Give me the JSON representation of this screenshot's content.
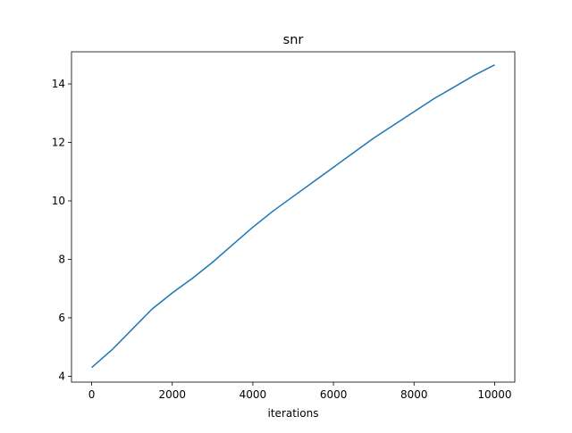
{
  "chart_data": {
    "type": "line",
    "title": "snr",
    "xlabel": "iterations",
    "ylabel": "",
    "xlim": [
      -500,
      10500
    ],
    "ylim": [
      3.8,
      15.1
    ],
    "xticks": [
      0,
      2000,
      4000,
      6000,
      8000,
      10000
    ],
    "xtick_labels": [
      "0",
      "2000",
      "4000",
      "6000",
      "8000",
      "10000"
    ],
    "yticks": [
      4,
      6,
      8,
      10,
      12,
      14
    ],
    "ytick_labels": [
      "4",
      "6",
      "8",
      "10",
      "12",
      "14"
    ],
    "grid": false,
    "legend": "none",
    "series": [
      {
        "color": "#1f77b4",
        "x": [
          0,
          500,
          1000,
          1500,
          2000,
          2500,
          3000,
          3500,
          4000,
          4500,
          5000,
          5500,
          6000,
          6500,
          7000,
          7500,
          8000,
          8500,
          9000,
          9500,
          10000
        ],
        "y": [
          4.3,
          4.9,
          5.6,
          6.3,
          6.85,
          7.35,
          7.9,
          8.5,
          9.1,
          9.65,
          10.15,
          10.65,
          11.15,
          11.65,
          12.15,
          12.6,
          13.05,
          13.5,
          13.9,
          14.3,
          14.65
        ]
      }
    ]
  }
}
